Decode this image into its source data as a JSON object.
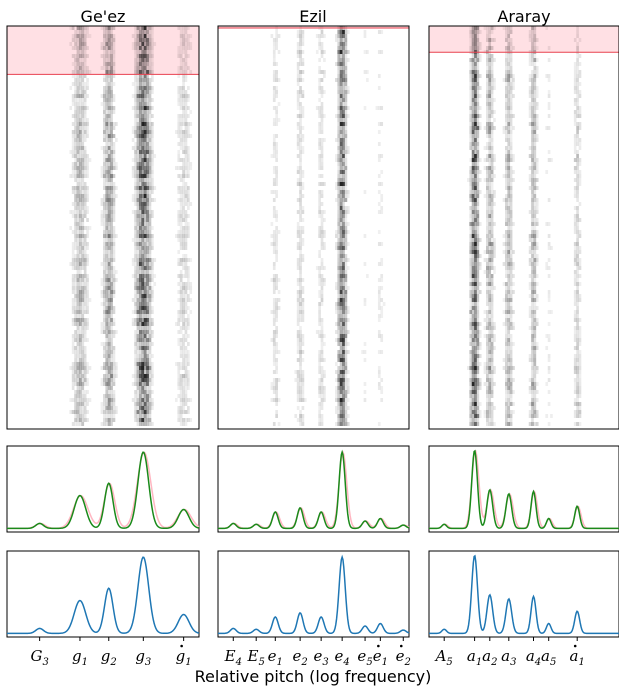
{
  "figure": {
    "xlabel": "Relative pitch (log frequency)"
  },
  "colors": {
    "heatmap": "#000000",
    "highlight_fill": "#ffe0e4",
    "highlight_line": "#e8414f",
    "profile_green": "#1a8a1a",
    "profile_pink": "#ffb6c1",
    "profile_blue": "#1f77b4",
    "axis": "#000000"
  },
  "chart_data": [
    {
      "type": "heatmap",
      "title": "Ge'ez",
      "pitch_range": [
        0,
        1
      ],
      "peaks": [
        {
          "label": "G",
          "sub": "3",
          "dot": "",
          "x": 0.17,
          "h": 0.06,
          "w": 0.02
        },
        {
          "label": "g",
          "sub": "1",
          "dot": "",
          "x": 0.38,
          "h": 0.4,
          "w": 0.03
        },
        {
          "label": "g",
          "sub": "2",
          "dot": "",
          "x": 0.53,
          "h": 0.55,
          "w": 0.022
        },
        {
          "label": "g",
          "sub": "3",
          "dot": "",
          "x": 0.71,
          "h": 0.93,
          "w": 0.028
        },
        {
          "label": "g",
          "sub": "1",
          "dot": "above",
          "x": 0.92,
          "h": 0.23,
          "w": 0.028
        }
      ],
      "observed": [
        0.03,
        0.15,
        0.37,
        0.62,
        0.96,
        0.3
      ],
      "highlight_fraction": 0.12,
      "series": [
        {
          "name": "",
          "panel": "observed",
          "color": "pink"
        },
        {
          "name": "",
          "panel": "observed",
          "color": "green"
        },
        {
          "name": "",
          "panel": "model",
          "color": "blue"
        }
      ]
    },
    {
      "type": "heatmap",
      "title": "Ezil",
      "pitch_range": [
        0,
        1
      ],
      "peaks": [
        {
          "label": "E",
          "sub": "4",
          "dot": "",
          "x": 0.08,
          "h": 0.06,
          "w": 0.015
        },
        {
          "label": "E",
          "sub": "5",
          "dot": "",
          "x": 0.2,
          "h": 0.05,
          "w": 0.015
        },
        {
          "label": "e",
          "sub": "1",
          "dot": "",
          "x": 0.3,
          "h": 0.2,
          "w": 0.015
        },
        {
          "label": "e",
          "sub": "2",
          "dot": "",
          "x": 0.43,
          "h": 0.25,
          "w": 0.015
        },
        {
          "label": "e",
          "sub": "3",
          "dot": "",
          "x": 0.54,
          "h": 0.2,
          "w": 0.015
        },
        {
          "label": "e",
          "sub": "4",
          "dot": "",
          "x": 0.65,
          "h": 0.93,
          "w": 0.016
        },
        {
          "label": "e",
          "sub": "5",
          "dot": "",
          "x": 0.77,
          "h": 0.09,
          "w": 0.015
        },
        {
          "label": "e",
          "sub": "1",
          "dot": "above",
          "x": 0.85,
          "h": 0.12,
          "w": 0.015
        },
        {
          "label": "e",
          "sub": "2",
          "dot": "above",
          "x": 0.97,
          "h": 0.04,
          "w": 0.015
        }
      ],
      "highlight_fraction": 0.005,
      "series": [
        {
          "name": "",
          "panel": "observed",
          "color": "pink"
        },
        {
          "name": "",
          "panel": "observed",
          "color": "green"
        },
        {
          "name": "",
          "panel": "model",
          "color": "blue"
        }
      ]
    },
    {
      "type": "heatmap",
      "title": "Araray",
      "pitch_range": [
        0,
        1
      ],
      "peaks": [
        {
          "label": "A",
          "sub": "5",
          "dot": "",
          "x": 0.08,
          "h": 0.05,
          "w": 0.012
        },
        {
          "label": "a",
          "sub": "1",
          "dot": "",
          "x": 0.24,
          "h": 0.95,
          "w": 0.015
        },
        {
          "label": "a",
          "sub": "2",
          "dot": "",
          "x": 0.32,
          "h": 0.47,
          "w": 0.015
        },
        {
          "label": "a",
          "sub": "3",
          "dot": "",
          "x": 0.42,
          "h": 0.42,
          "w": 0.015
        },
        {
          "label": "a",
          "sub": "4",
          "dot": "",
          "x": 0.55,
          "h": 0.45,
          "w": 0.013
        },
        {
          "label": "a",
          "sub": "5",
          "dot": "",
          "x": 0.63,
          "h": 0.12,
          "w": 0.012
        },
        {
          "label": "a",
          "sub": "1",
          "dot": "above",
          "x": 0.78,
          "h": 0.27,
          "w": 0.013
        }
      ],
      "highlight_fraction": 0.065,
      "series": [
        {
          "name": "",
          "panel": "observed",
          "color": "pink"
        },
        {
          "name": "",
          "panel": "observed",
          "color": "green"
        },
        {
          "name": "",
          "panel": "model",
          "color": "blue"
        }
      ]
    }
  ]
}
